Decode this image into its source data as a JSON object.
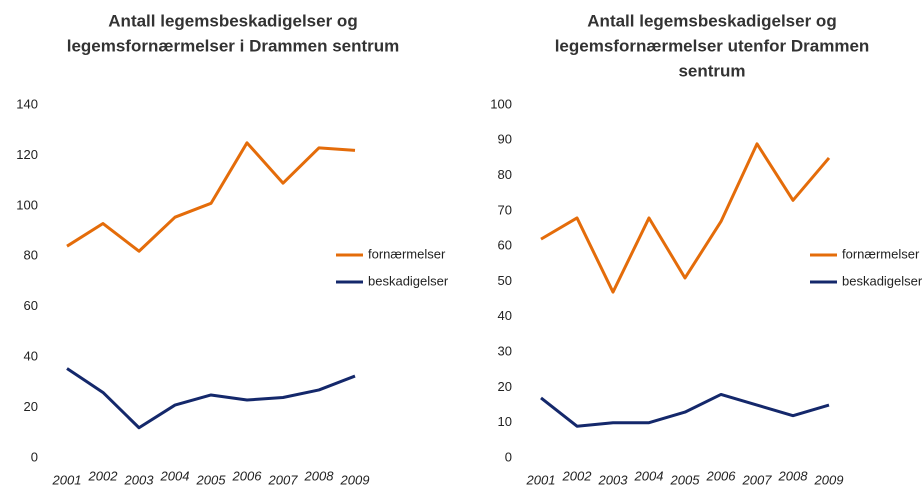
{
  "chart_data": [
    {
      "type": "line",
      "title": [
        "Antall legemsbeskadigelser og",
        "legemsfornærmelser i Drammen sentrum"
      ],
      "categories": [
        "2001",
        "2002",
        "2003",
        "2004",
        "2005",
        "2006",
        "2007",
        "2008",
        "2009"
      ],
      "series": [
        {
          "name": "fornærmelser",
          "color": "#e46c0a",
          "values": [
            84,
            93,
            82,
            95.5,
            101,
            125,
            109,
            123,
            122
          ]
        },
        {
          "name": "beskadigelser",
          "color": "#14286b",
          "values": [
            35.5,
            26,
            12,
            21,
            25,
            23,
            24,
            27,
            32.5
          ]
        }
      ],
      "ylim": [
        0,
        140
      ],
      "yticks": [
        0,
        20,
        40,
        60,
        80,
        100,
        120,
        140
      ],
      "grid": false,
      "legend": "right"
    },
    {
      "type": "line",
      "title": [
        "Antall legemsbeskadigelser og",
        "legemsfornærmelser utenfor Drammen",
        "sentrum"
      ],
      "categories": [
        "2001",
        "2002",
        "2003",
        "2004",
        "2005",
        "2006",
        "2007",
        "2008",
        "2009"
      ],
      "series": [
        {
          "name": "fornærmelser",
          "color": "#e46c0a",
          "values": [
            62,
            68,
            47,
            68,
            51,
            67,
            89,
            73,
            85
          ]
        },
        {
          "name": "beskadigelser",
          "color": "#14286b",
          "values": [
            17,
            9,
            10,
            10,
            13,
            18,
            15,
            12,
            15
          ]
        }
      ],
      "ylim": [
        0,
        100
      ],
      "yticks": [
        0,
        10,
        20,
        30,
        40,
        50,
        60,
        70,
        80,
        90,
        100
      ],
      "grid": false,
      "legend": "right"
    }
  ]
}
